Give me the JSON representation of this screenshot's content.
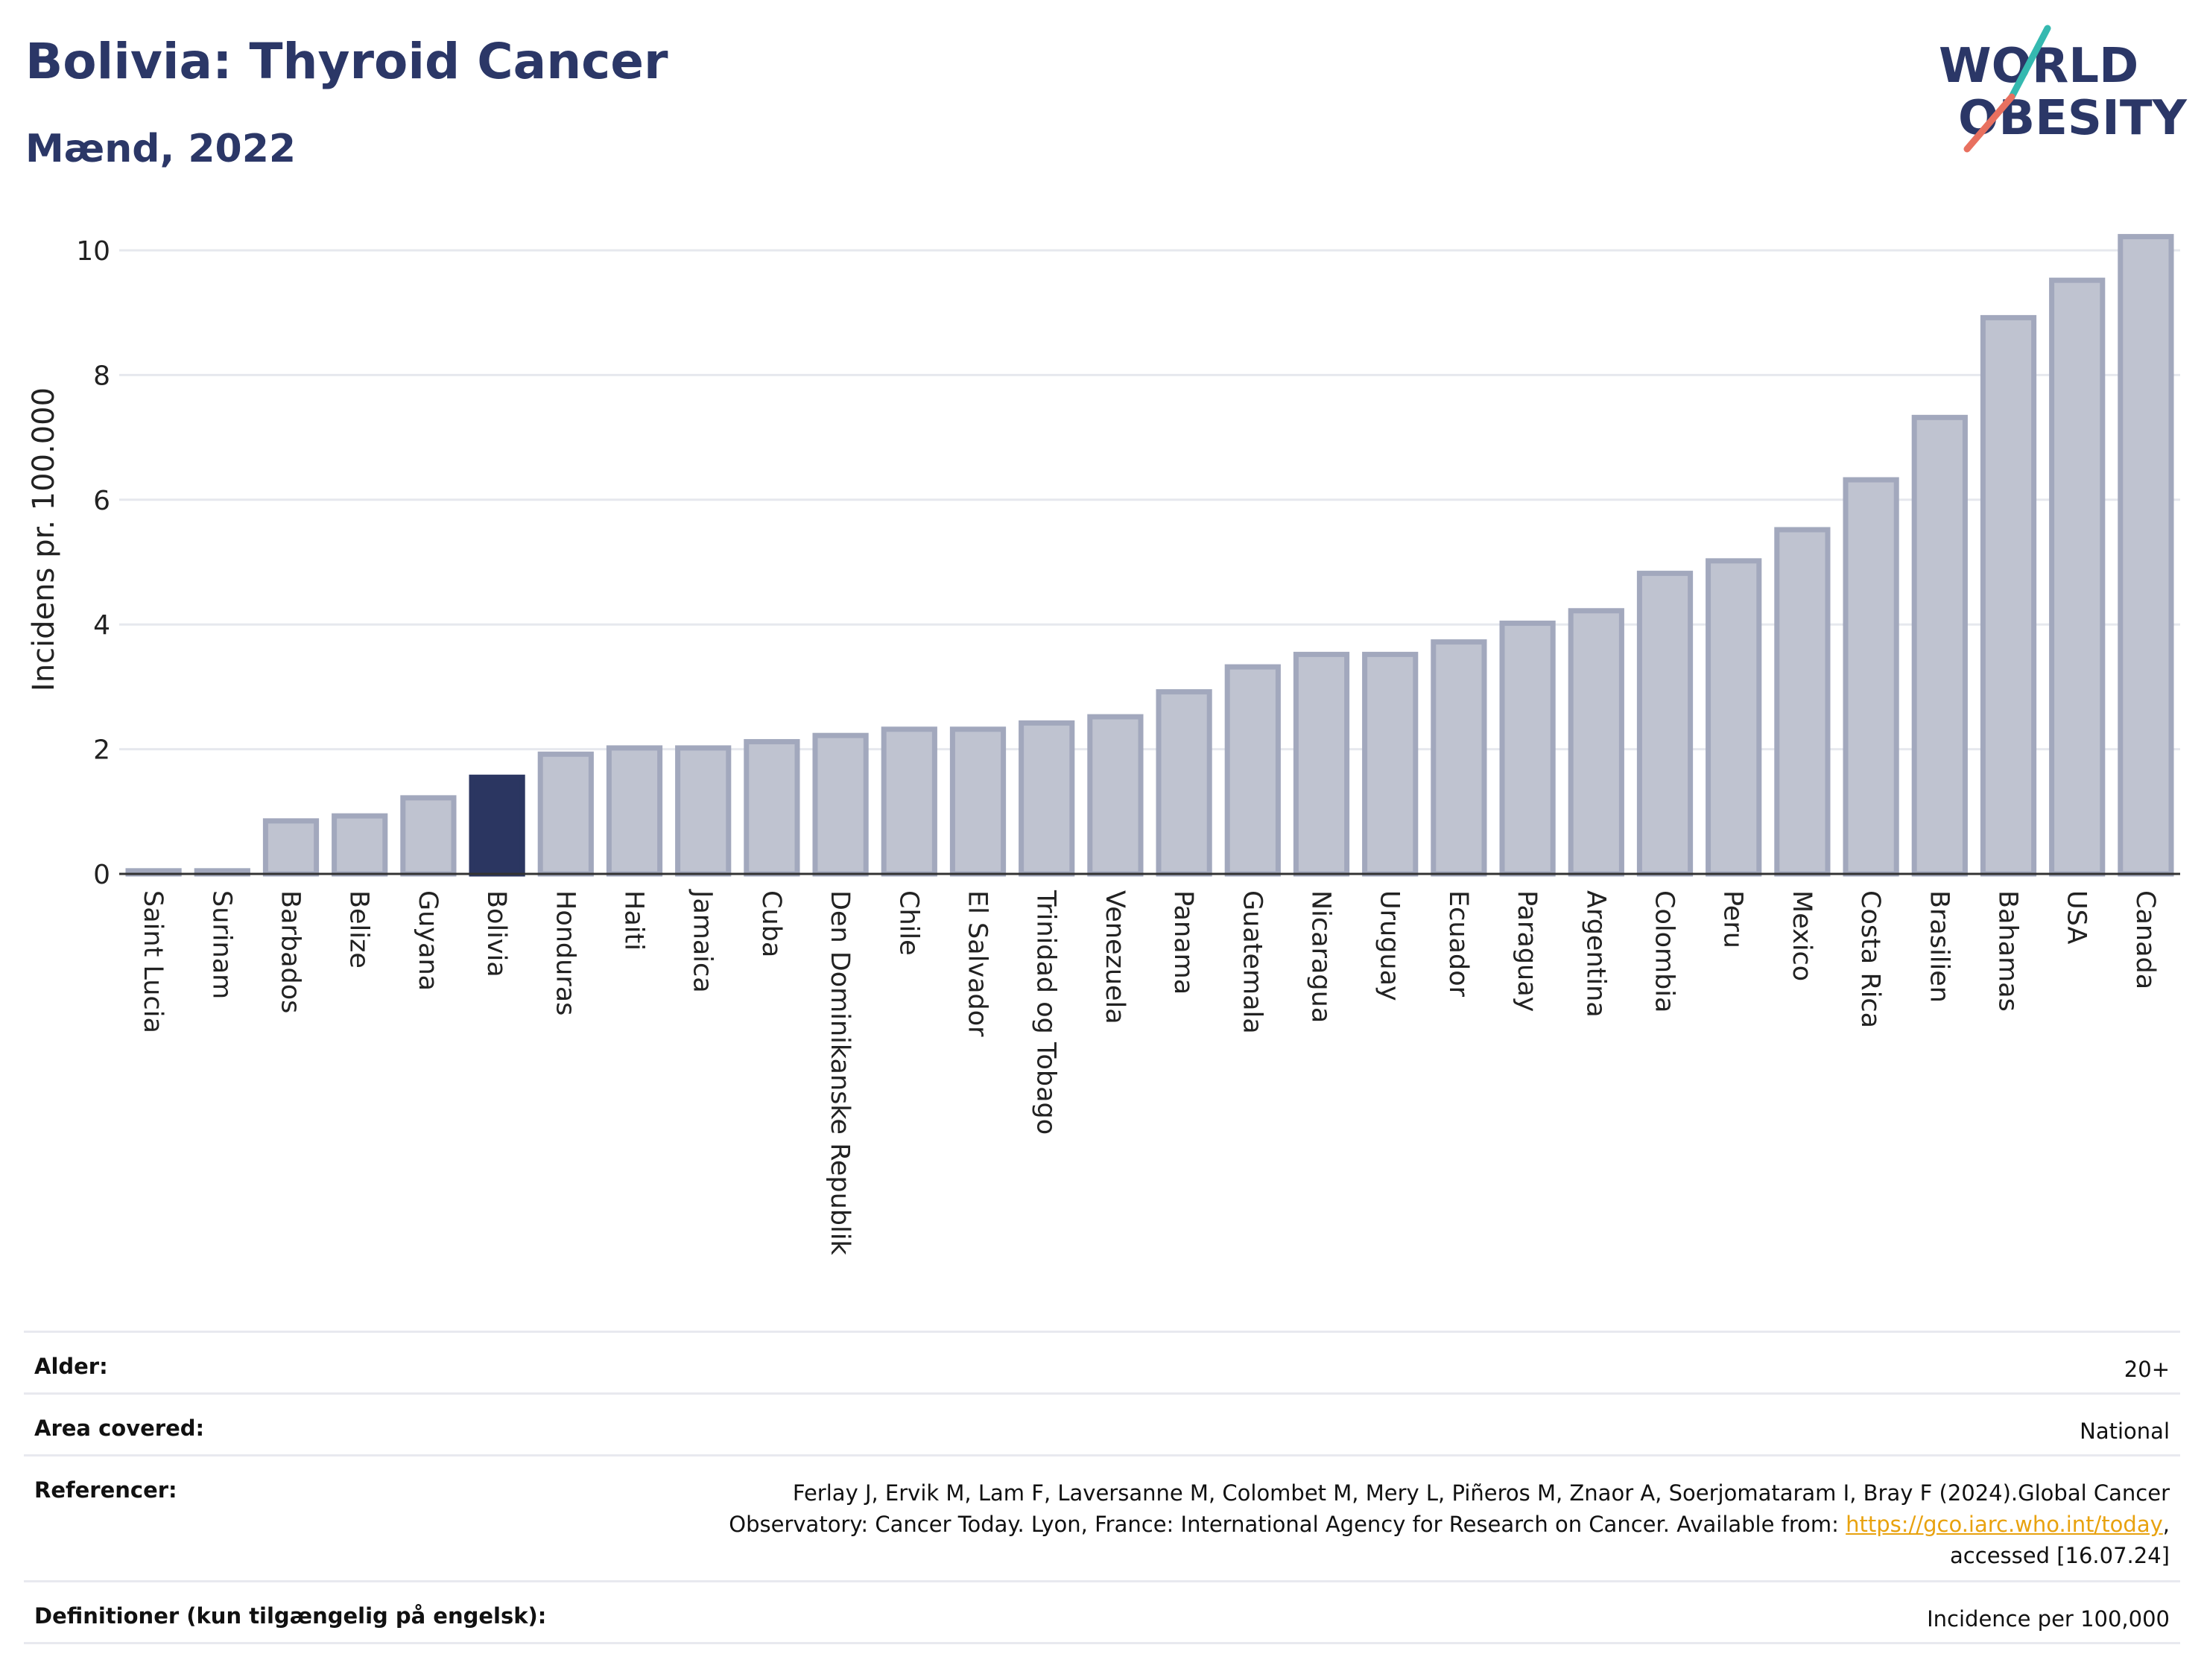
{
  "header": {
    "title": "Bolivia: Thyroid Cancer",
    "subtitle": "Mænd, 2022",
    "logo_line1": "WORLD",
    "logo_line2": "OBESITY"
  },
  "colors": {
    "bar": "#bfc3d0",
    "bar_border": "#a2a8bd",
    "highlight": "#2b3661",
    "text": "#2b3767",
    "link": "#e8a20f"
  },
  "chart_data": {
    "type": "bar",
    "title": "Bolivia: Thyroid Cancer",
    "subtitle": "Mænd, 2022",
    "ylabel": "Incidens pr. 100.000",
    "xlabel": "",
    "ylim": [
      0,
      10.5
    ],
    "yticks": [
      0,
      2,
      4,
      6,
      8,
      10
    ],
    "grid": true,
    "highlight": "Bolivia",
    "categories": [
      "Saint Lucia",
      "Surinam",
      "Barbados",
      "Belize",
      "Guyana",
      "Bolivia",
      "Honduras",
      "Haiti",
      "Jamaica",
      "Cuba",
      "Den Dominikanske Republik",
      "Chile",
      "El Salvador",
      "Trinidad og Tobago",
      "Venezuela",
      "Panama",
      "Guatemala",
      "Nicaragua",
      "Uruguay",
      "Ecuador",
      "Paraguay",
      "Argentina",
      "Colombia",
      "Peru",
      "Mexico",
      "Costa Rica",
      "Brasilien",
      "Bahamas",
      "USA",
      "Canada"
    ],
    "values": [
      0.05,
      0.05,
      0.85,
      0.93,
      1.22,
      1.55,
      1.92,
      2.02,
      2.02,
      2.12,
      2.22,
      2.32,
      2.32,
      2.42,
      2.52,
      2.92,
      3.32,
      3.52,
      3.52,
      3.72,
      4.02,
      4.22,
      4.82,
      5.02,
      5.52,
      6.32,
      7.32,
      8.92,
      9.52,
      10.22
    ]
  },
  "meta": {
    "age_label": "Alder:",
    "age_value": "20+",
    "area_label": "Area covered:",
    "area_value": "National",
    "ref_label": "Referencer:",
    "ref_line1": "Ferlay J, Ervik M, Lam F, Laversanne M, Colombet M, Mery L, Piñeros M, Znaor A, Soerjomataram I, Bray F (2024).Global Cancer",
    "ref_line2": "Observatory: Cancer Today. Lyon, France: International Agency for Research on Cancer. Available from: ",
    "ref_link": "https://gco.iarc.who.int/today",
    "ref_line2_end": ",",
    "ref_line3": "accessed [16.07.24]",
    "def_label": "Definitioner (kun tilgængelig på engelsk):",
    "def_value": "Incidence per 100,000"
  }
}
